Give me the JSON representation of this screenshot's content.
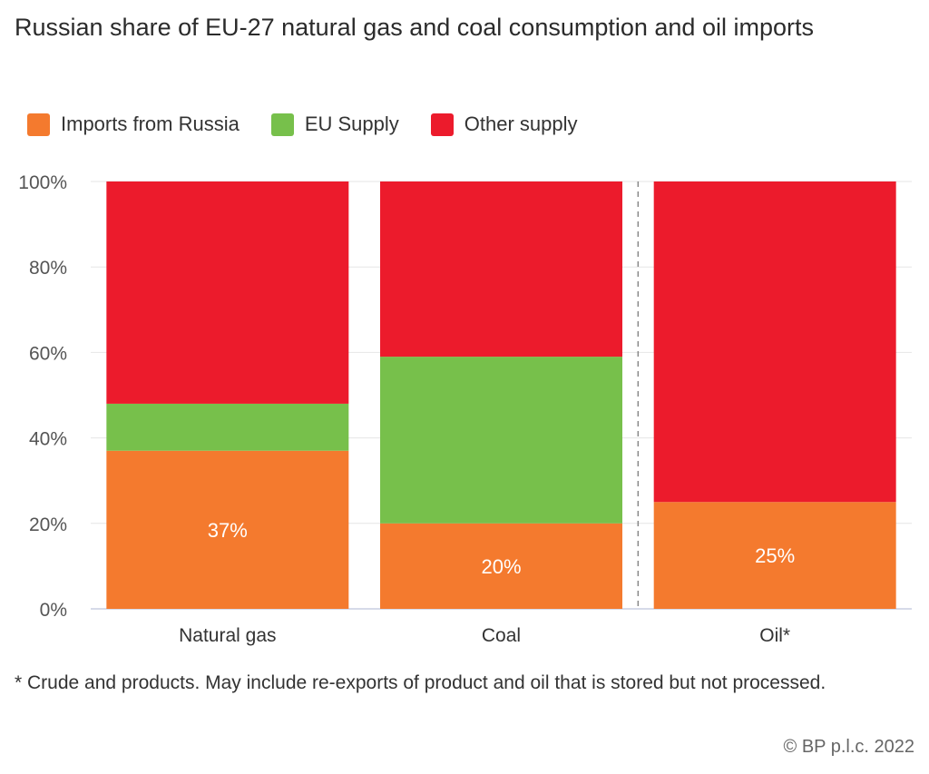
{
  "title": "Russian share of EU-27 natural gas and coal consumption and oil imports",
  "legend": [
    {
      "label": "Imports from Russia",
      "color": "#f47a2e"
    },
    {
      "label": "EU Supply",
      "color": "#77c04b"
    },
    {
      "label": "Other supply",
      "color": "#ec1b2c"
    }
  ],
  "chart_data": {
    "type": "bar",
    "stacked": true,
    "categories": [
      "Natural gas",
      "Coal",
      "Oil*"
    ],
    "series": [
      {
        "name": "Imports from Russia",
        "values": [
          37,
          20,
          25
        ],
        "color": "#f47a2e"
      },
      {
        "name": "EU Supply",
        "values": [
          11,
          39,
          0
        ],
        "color": "#77c04b"
      },
      {
        "name": "Other supply",
        "values": [
          52,
          41,
          75
        ],
        "color": "#ec1b2c"
      }
    ],
    "data_labels": [
      "37%",
      "20%",
      "25%"
    ],
    "yticks": [
      "0%",
      "20%",
      "40%",
      "60%",
      "80%",
      "100%"
    ],
    "ylim": [
      0,
      100
    ],
    "xlabel": "",
    "ylabel": "",
    "grid": true,
    "separator_before": "Oil*"
  },
  "footnote": "* Crude and products. May include re-exports of product and oil that is stored but not processed.",
  "copyright": "© BP p.l.c. 2022"
}
